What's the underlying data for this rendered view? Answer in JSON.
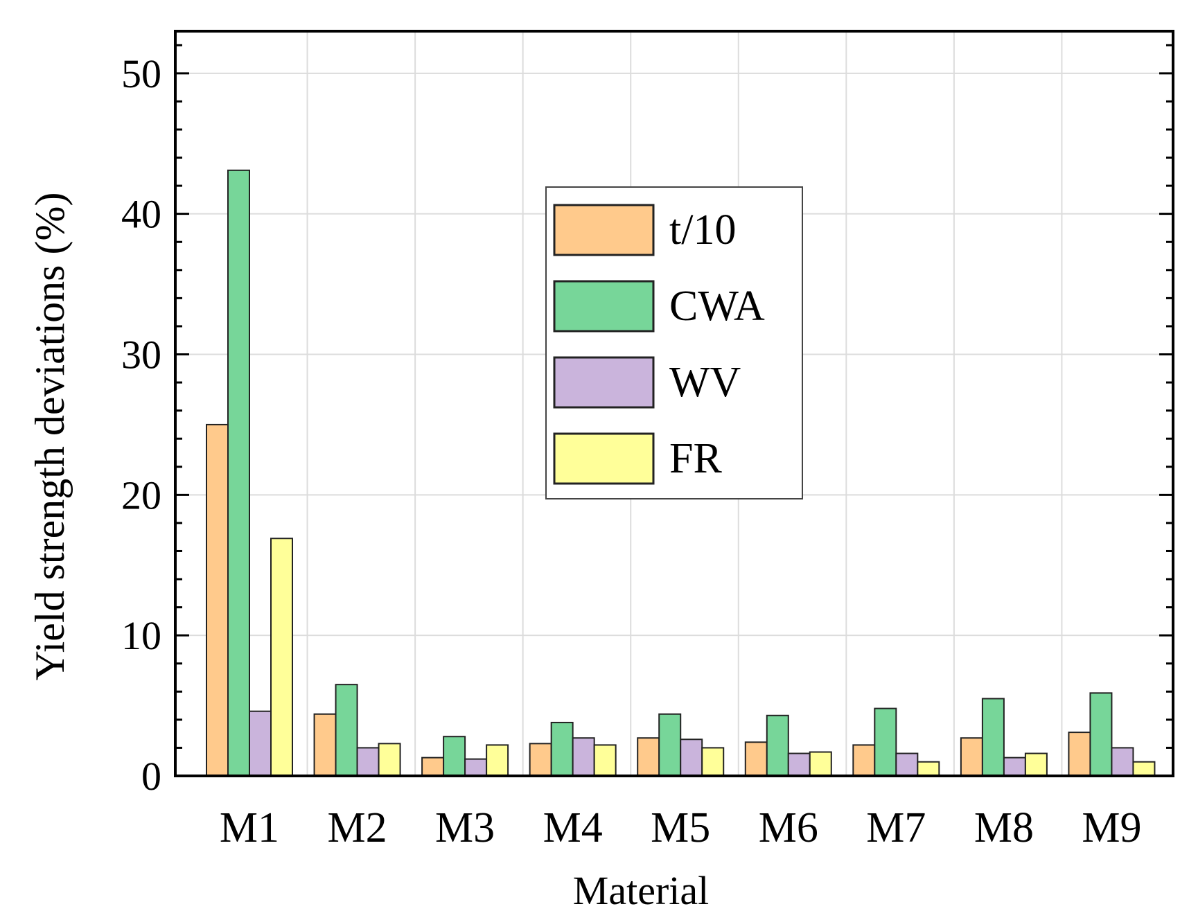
{
  "chart_data": {
    "type": "bar",
    "title": "",
    "xlabel": "Material",
    "ylabel": "Yield strength deviations (%)",
    "ylim": [
      0,
      53
    ],
    "yticks": [
      0,
      10,
      20,
      30,
      40,
      50
    ],
    "grid": true,
    "legend_position": "top-center",
    "categories": [
      "M1",
      "M2",
      "M3",
      "M4",
      "M5",
      "M6",
      "M7",
      "M8",
      "M9"
    ],
    "series": [
      {
        "name": "t/10",
        "color": "#FFCA8C",
        "values": [
          25.0,
          4.4,
          1.3,
          2.3,
          2.7,
          2.4,
          2.2,
          2.7,
          3.1
        ]
      },
      {
        "name": "CWA",
        "color": "#77D699",
        "values": [
          43.1,
          6.5,
          2.8,
          3.8,
          4.4,
          4.3,
          4.8,
          5.5,
          5.9
        ]
      },
      {
        "name": "WV",
        "color": "#CAB4DC",
        "values": [
          4.6,
          2.0,
          1.2,
          2.7,
          2.6,
          1.6,
          1.6,
          1.3,
          2.0
        ]
      },
      {
        "name": "FR",
        "color": "#FFFF99",
        "values": [
          16.9,
          2.3,
          2.2,
          2.2,
          2.0,
          1.7,
          1.0,
          1.6,
          1.0
        ]
      }
    ]
  }
}
